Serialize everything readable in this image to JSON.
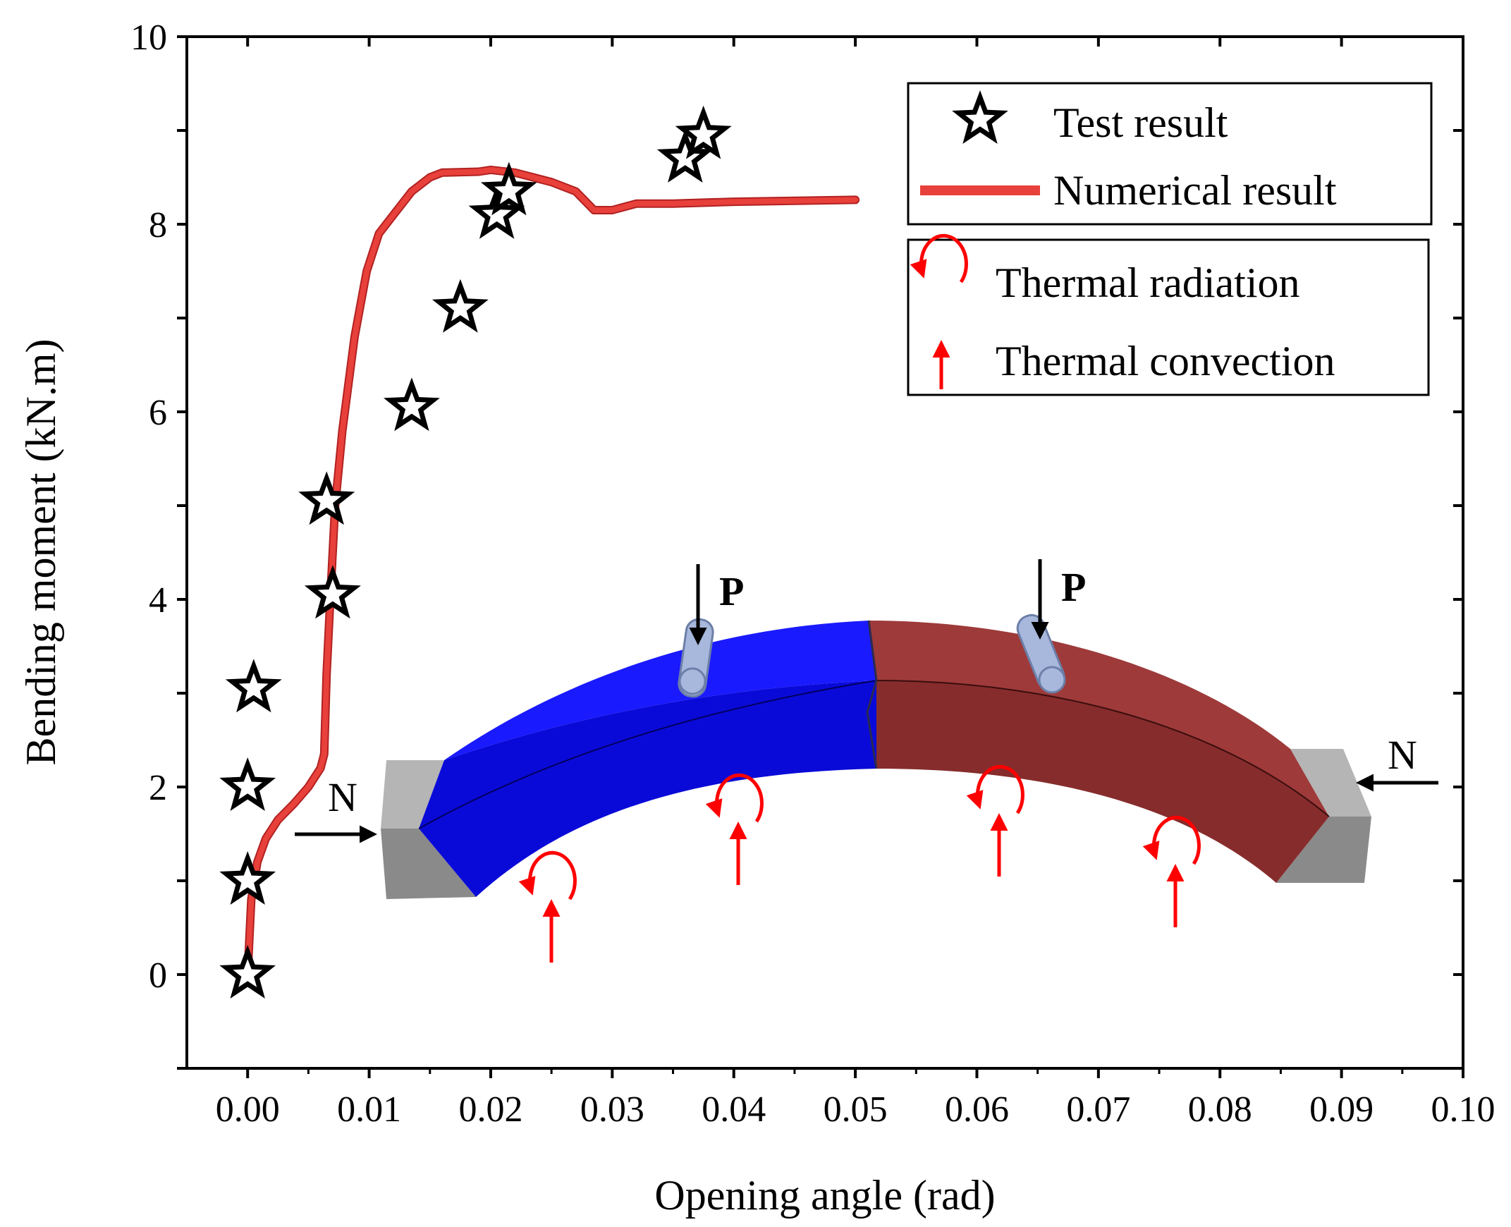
{
  "chart_data": {
    "type": "scatter+line",
    "xlabel": "Opening angle (rad)",
    "ylabel": "Bending moment (kN.m)",
    "xlim": [
      -0.005,
      0.1
    ],
    "ylim": [
      -1,
      10
    ],
    "x_ticks": [
      0.0,
      0.01,
      0.02,
      0.03,
      0.04,
      0.05,
      0.06,
      0.07,
      0.08,
      0.09,
      0.1
    ],
    "x_tick_labels": [
      "0.00",
      "0.01",
      "0.02",
      "0.03",
      "0.04",
      "0.05",
      "0.06",
      "0.07",
      "0.08",
      "0.09",
      "0.10"
    ],
    "y_ticks": [
      0,
      2,
      4,
      6,
      8,
      10
    ],
    "y_tick_labels": [
      "0",
      "2",
      "4",
      "6",
      "8",
      "10"
    ],
    "grid": false,
    "legend_position": "top-right",
    "series": [
      {
        "name": "Test result",
        "kind": "scatter",
        "marker": "star",
        "color": "#000000",
        "points": [
          [
            0.0,
            0.0
          ],
          [
            0.0,
            1.0
          ],
          [
            0.0,
            2.0
          ],
          [
            0.0005,
            3.05
          ],
          [
            0.007,
            4.05
          ],
          [
            0.0065,
            5.05
          ],
          [
            0.0135,
            6.05
          ],
          [
            0.0175,
            7.1
          ],
          [
            0.0205,
            8.1
          ],
          [
            0.0215,
            8.35
          ],
          [
            0.036,
            8.7
          ],
          [
            0.0375,
            8.95
          ]
        ]
      },
      {
        "name": "Numerical result",
        "kind": "line",
        "color": "#e8403a",
        "points": [
          [
            0.0,
            0.0
          ],
          [
            0.0003,
            0.8
          ],
          [
            0.0008,
            1.2
          ],
          [
            0.0015,
            1.45
          ],
          [
            0.0025,
            1.65
          ],
          [
            0.0038,
            1.82
          ],
          [
            0.005,
            2.0
          ],
          [
            0.006,
            2.2
          ],
          [
            0.0063,
            2.35
          ],
          [
            0.0065,
            3.2
          ],
          [
            0.0068,
            4.0
          ],
          [
            0.0072,
            5.0
          ],
          [
            0.0078,
            5.8
          ],
          [
            0.0088,
            6.8
          ],
          [
            0.0098,
            7.5
          ],
          [
            0.0108,
            7.9
          ],
          [
            0.012,
            8.1
          ],
          [
            0.0135,
            8.35
          ],
          [
            0.015,
            8.5
          ],
          [
            0.016,
            8.55
          ],
          [
            0.019,
            8.56
          ],
          [
            0.02,
            8.58
          ],
          [
            0.022,
            8.55
          ],
          [
            0.025,
            8.45
          ],
          [
            0.027,
            8.35
          ],
          [
            0.0285,
            8.15
          ],
          [
            0.03,
            8.15
          ],
          [
            0.032,
            8.22
          ],
          [
            0.035,
            8.22
          ],
          [
            0.04,
            8.24
          ],
          [
            0.045,
            8.25
          ],
          [
            0.05,
            8.26
          ]
        ]
      }
    ],
    "legend_entries": [
      "Test result",
      "Numerical result"
    ]
  },
  "inset": {
    "legend": {
      "radiation_label": "Thermal radiation",
      "convection_label": "Thermal convection"
    },
    "load_labels": {
      "p_left": "P",
      "p_right": "P",
      "n_left": "N",
      "n_right": "N"
    },
    "colors": {
      "left_segment": "#0000ee",
      "right_segment": "#8b2f2f",
      "support": "#a0a0a0",
      "heat": "#ff0000"
    }
  }
}
